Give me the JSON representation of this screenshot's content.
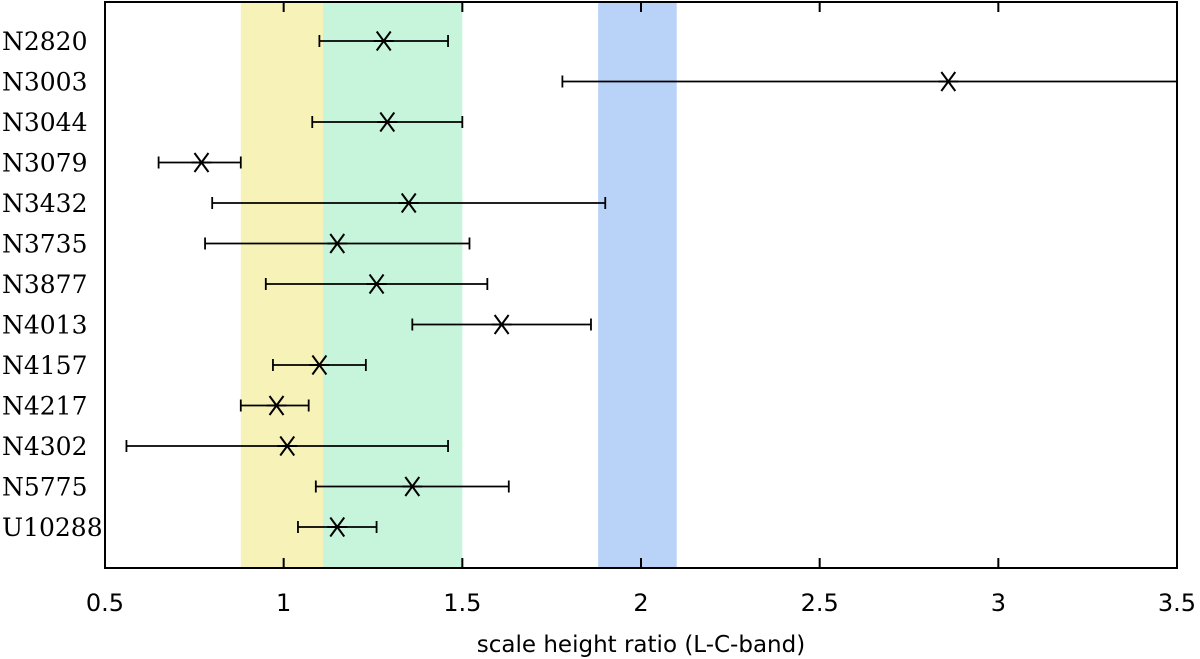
{
  "chart_data": {
    "type": "scatter",
    "title": "",
    "xlabel": "scale height ratio (L-C-band)",
    "ylabel": "",
    "xlim": [
      0.5,
      3.5
    ],
    "xticks": [
      0.5,
      1,
      1.5,
      2,
      2.5,
      3,
      3.5
    ],
    "xtick_labels": [
      "0.5",
      "1",
      "1.5",
      "2",
      "2.5",
      "3",
      "3.5"
    ],
    "grid": false,
    "legend": "none",
    "marker": "x-star",
    "marker_color": "#000000",
    "shaded_bands": [
      {
        "x_from": 0.88,
        "x_to": 1.11,
        "color": "#f7f2b8"
      },
      {
        "x_from": 1.11,
        "x_to": 1.5,
        "color": "#c6f5dc"
      },
      {
        "x_from": 1.88,
        "x_to": 2.1,
        "color": "#b9d3f8"
      }
    ],
    "categories": [
      "N2820",
      "N3003",
      "N3044",
      "N3079",
      "N3432",
      "N3735",
      "N3877",
      "N4013",
      "N4157",
      "N4217",
      "N4302",
      "N5775",
      "U10288"
    ],
    "values": [
      1.28,
      2.86,
      1.29,
      0.77,
      1.35,
      1.15,
      1.26,
      1.61,
      1.1,
      0.98,
      1.01,
      1.36,
      1.15
    ],
    "err_low": [
      1.1,
      1.78,
      1.08,
      0.65,
      0.8,
      0.78,
      0.95,
      1.36,
      0.97,
      0.88,
      0.56,
      1.09,
      1.04
    ],
    "err_high": [
      1.46,
      3.5,
      1.5,
      0.88,
      1.9,
      1.52,
      1.57,
      1.86,
      1.23,
      1.07,
      1.46,
      1.63,
      1.26
    ]
  }
}
